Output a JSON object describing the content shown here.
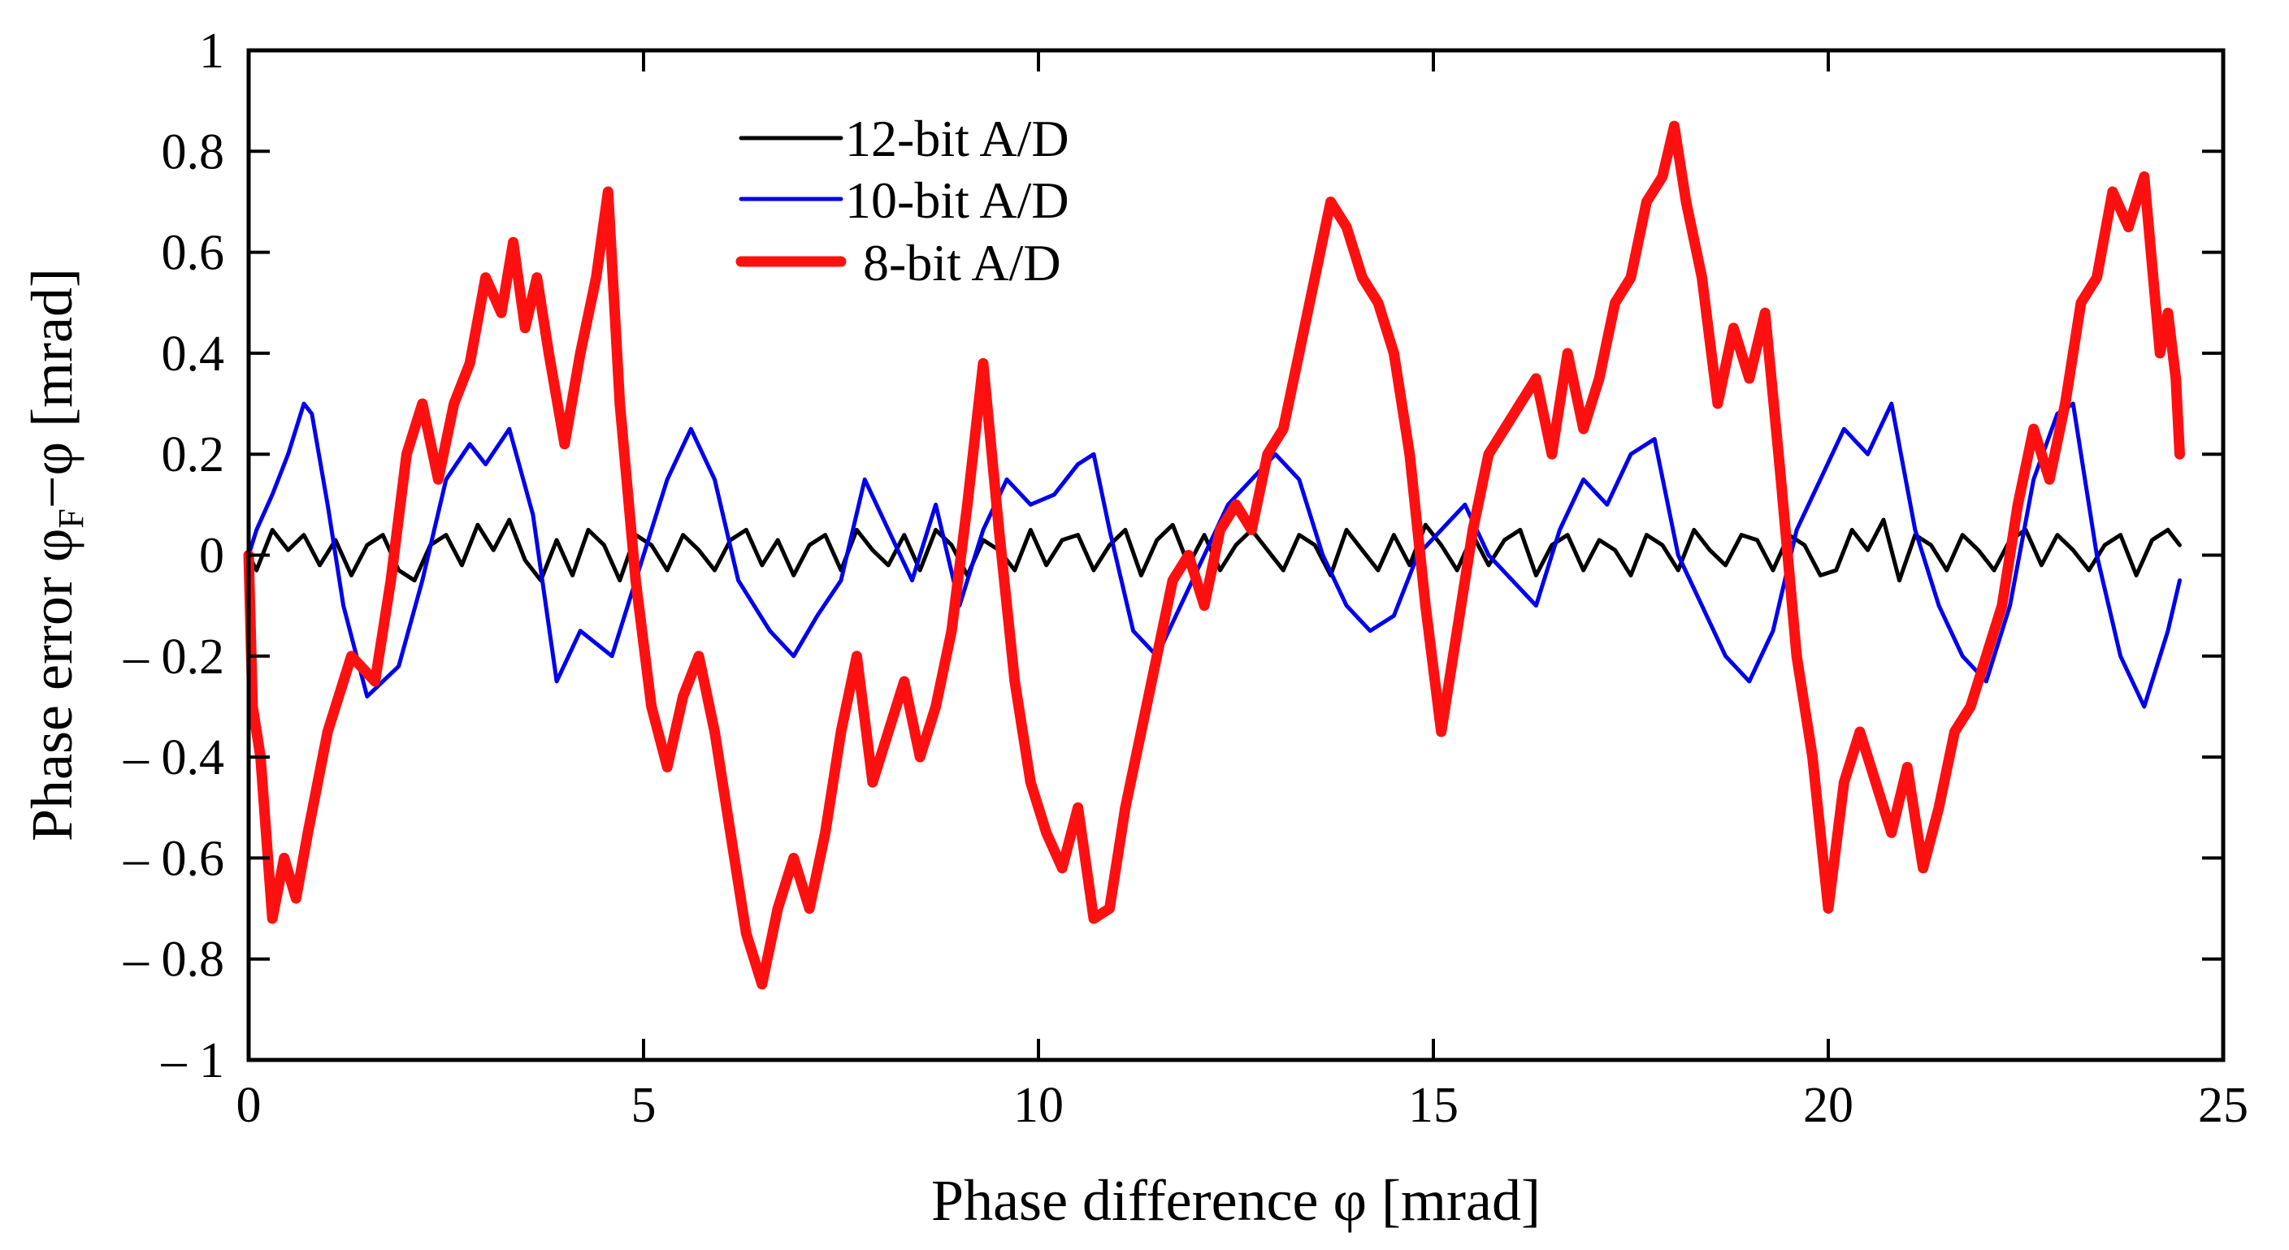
{
  "chart_data": {
    "type": "line",
    "title": "",
    "xlabel": "Phase difference φ [mrad]",
    "ylabel": "Phase error φF−φ [mrad]",
    "ylabel_parts": {
      "pre": "Phase error φ",
      "sub": "F",
      "post": "−φ [mrad]"
    },
    "xlim": [
      0,
      25
    ],
    "ylim": [
      -1,
      1
    ],
    "grid": false,
    "legend_position": "top-center",
    "x_ticks": [
      0,
      5,
      10,
      15,
      20,
      25
    ],
    "x_tick_labels": [
      "0",
      "5",
      "10",
      "15",
      "20",
      "25"
    ],
    "y_ticks": [
      -1,
      -0.8,
      -0.6,
      -0.4,
      -0.2,
      0,
      0.2,
      0.4,
      0.6,
      0.8,
      1
    ],
    "y_tick_labels": [
      "– 1",
      "– 0.8",
      "– 0.6",
      "– 0.4",
      "– 0.2",
      "0",
      "0.2",
      "0.4",
      "0.6",
      "0.8",
      "1"
    ],
    "series": [
      {
        "name": "12-bit A/D",
        "color": "#000000",
        "width": 5,
        "x": [
          0,
          0.1,
          0.3,
          0.5,
          0.7,
          0.9,
          1.1,
          1.3,
          1.5,
          1.7,
          1.9,
          2.1,
          2.3,
          2.5,
          2.7,
          2.9,
          3.1,
          3.3,
          3.5,
          3.7,
          3.9,
          4.1,
          4.3,
          4.5,
          4.7,
          4.9,
          5.1,
          5.3,
          5.5,
          5.7,
          5.9,
          6.1,
          6.3,
          6.5,
          6.7,
          6.9,
          7.1,
          7.3,
          7.5,
          7.7,
          7.9,
          8.1,
          8.3,
          8.5,
          8.7,
          8.9,
          9.1,
          9.3,
          9.5,
          9.7,
          9.9,
          10.1,
          10.3,
          10.5,
          10.7,
          10.9,
          11.1,
          11.3,
          11.5,
          11.7,
          11.9,
          12.1,
          12.3,
          12.5,
          12.7,
          12.9,
          13.1,
          13.3,
          13.5,
          13.7,
          13.9,
          14.1,
          14.3,
          14.5,
          14.7,
          14.9,
          15.1,
          15.3,
          15.5,
          15.7,
          15.9,
          16.1,
          16.3,
          16.5,
          16.7,
          16.9,
          17.1,
          17.3,
          17.5,
          17.7,
          17.9,
          18.1,
          18.3,
          18.5,
          18.7,
          18.9,
          19.1,
          19.3,
          19.5,
          19.7,
          19.9,
          20.1,
          20.3,
          20.5,
          20.7,
          20.9,
          21.1,
          21.3,
          21.5,
          21.7,
          21.9,
          22.1,
          22.3,
          22.5,
          22.7,
          22.9,
          23.1,
          23.3,
          23.5,
          23.7,
          23.9,
          24.1,
          24.3,
          24.45
        ],
        "y": [
          0,
          -0.03,
          0.05,
          0.01,
          0.04,
          -0.02,
          0.03,
          -0.04,
          0.02,
          0.04,
          -0.03,
          -0.05,
          0.02,
          0.04,
          -0.02,
          0.06,
          0.01,
          0.07,
          -0.01,
          -0.05,
          0.03,
          -0.04,
          0.05,
          0.02,
          -0.05,
          0.04,
          0.02,
          -0.03,
          0.04,
          0.01,
          -0.03,
          0.03,
          0.05,
          -0.02,
          0.03,
          -0.04,
          0.02,
          0.04,
          -0.03,
          0.05,
          0.01,
          -0.02,
          0.04,
          -0.03,
          0.05,
          0.02,
          -0.04,
          0.03,
          0.01,
          -0.03,
          0.05,
          -0.02,
          0.03,
          0.04,
          -0.03,
          0.02,
          0.05,
          -0.04,
          0.03,
          0.06,
          -0.02,
          0.04,
          -0.03,
          0.02,
          0.05,
          0.01,
          -0.03,
          0.04,
          0.02,
          -0.04,
          0.05,
          0.01,
          -0.03,
          0.04,
          -0.02,
          0.06,
          0.02,
          -0.03,
          0.04,
          -0.02,
          0.03,
          0.05,
          -0.04,
          0.02,
          0.04,
          -0.03,
          0.03,
          0.01,
          -0.04,
          0.04,
          0.02,
          -0.03,
          0.05,
          0.01,
          -0.02,
          0.04,
          0.03,
          -0.03,
          0.04,
          0.02,
          -0.04,
          -0.03,
          0.05,
          0.01,
          0.07,
          -0.05,
          0.04,
          0.02,
          -0.03,
          0.04,
          0.01,
          -0.03,
          0.03,
          0.05,
          -0.02,
          0.04,
          0.01,
          -0.03,
          0.02,
          0.04,
          -0.04,
          0.03,
          0.05,
          0.02
        ]
      },
      {
        "name": "10-bit A/D",
        "color": "#0000ee",
        "width": 5,
        "x": [
          0,
          0.1,
          0.3,
          0.5,
          0.7,
          0.8,
          1.0,
          1.2,
          1.5,
          1.9,
          2.2,
          2.5,
          2.8,
          3.0,
          3.3,
          3.6,
          3.9,
          4.2,
          4.6,
          5.0,
          5.3,
          5.6,
          5.9,
          6.2,
          6.6,
          6.9,
          7.2,
          7.5,
          7.8,
          8.1,
          8.4,
          8.7,
          9.0,
          9.3,
          9.6,
          9.9,
          10.2,
          10.5,
          10.7,
          10.9,
          11.2,
          11.5,
          11.8,
          12.1,
          12.4,
          12.7,
          13.0,
          13.3,
          13.6,
          13.9,
          14.2,
          14.5,
          14.8,
          15.1,
          15.4,
          15.7,
          16.0,
          16.3,
          16.6,
          16.9,
          17.2,
          17.5,
          17.8,
          18.1,
          18.4,
          18.7,
          19.0,
          19.3,
          19.6,
          19.9,
          20.2,
          20.5,
          20.8,
          21.1,
          21.4,
          21.7,
          22.0,
          22.3,
          22.6,
          22.9,
          23.1,
          23.4,
          23.7,
          24.0,
          24.3,
          24.45
        ],
        "y": [
          0,
          0.05,
          0.12,
          0.2,
          0.3,
          0.28,
          0.1,
          -0.1,
          -0.28,
          -0.22,
          -0.05,
          0.15,
          0.22,
          0.18,
          0.25,
          0.08,
          -0.25,
          -0.15,
          -0.2,
          0,
          0.15,
          0.25,
          0.15,
          -0.05,
          -0.15,
          -0.2,
          -0.12,
          -0.05,
          0.15,
          0.05,
          -0.05,
          0.1,
          -0.1,
          0.05,
          0.15,
          0.1,
          0.12,
          0.18,
          0.2,
          0.05,
          -0.15,
          -0.2,
          -0.1,
          0,
          0.1,
          0.15,
          0.2,
          0.15,
          0,
          -0.1,
          -0.15,
          -0.12,
          0,
          0.05,
          0.1,
          0,
          -0.05,
          -0.1,
          0.05,
          0.15,
          0.1,
          0.2,
          0.23,
          0,
          -0.1,
          -0.2,
          -0.25,
          -0.15,
          0.05,
          0.15,
          0.25,
          0.2,
          0.3,
          0.05,
          -0.1,
          -0.2,
          -0.25,
          -0.1,
          0.15,
          0.28,
          0.3,
          0,
          -0.2,
          -0.3,
          -0.15,
          -0.05
        ]
      },
      {
        "name": "8-bit A/D",
        "color": "#ff1010",
        "width": 13,
        "x": [
          0,
          0.05,
          0.15,
          0.3,
          0.45,
          0.6,
          0.75,
          1.0,
          1.3,
          1.6,
          1.8,
          2.0,
          2.2,
          2.4,
          2.6,
          2.8,
          3.0,
          3.2,
          3.35,
          3.5,
          3.65,
          3.8,
          4.0,
          4.2,
          4.4,
          4.55,
          4.7,
          4.9,
          5.1,
          5.3,
          5.5,
          5.7,
          5.9,
          6.1,
          6.3,
          6.5,
          6.7,
          6.9,
          7.1,
          7.3,
          7.5,
          7.7,
          7.9,
          8.1,
          8.3,
          8.5,
          8.7,
          8.9,
          9.1,
          9.3,
          9.5,
          9.7,
          9.9,
          10.1,
          10.3,
          10.5,
          10.7,
          10.9,
          11.1,
          11.3,
          11.5,
          11.7,
          11.9,
          12.1,
          12.3,
          12.5,
          12.7,
          12.9,
          13.1,
          13.3,
          13.5,
          13.7,
          13.9,
          14.1,
          14.3,
          14.5,
          14.7,
          14.9,
          15.1,
          15.3,
          15.5,
          15.7,
          15.9,
          16.1,
          16.3,
          16.5,
          16.7,
          16.9,
          17.1,
          17.3,
          17.5,
          17.7,
          17.9,
          18.05,
          18.2,
          18.4,
          18.6,
          18.8,
          19.0,
          19.2,
          19.4,
          19.6,
          19.8,
          20.0,
          20.2,
          20.4,
          20.6,
          20.8,
          21.0,
          21.2,
          21.4,
          21.6,
          21.8,
          22.0,
          22.2,
          22.4,
          22.6,
          22.8,
          23.0,
          23.2,
          23.4,
          23.6,
          23.8,
          24.0,
          24.2,
          24.3,
          24.4,
          24.45
        ],
        "y": [
          0,
          -0.3,
          -0.4,
          -0.72,
          -0.6,
          -0.68,
          -0.55,
          -0.35,
          -0.2,
          -0.25,
          -0.05,
          0.2,
          0.3,
          0.15,
          0.3,
          0.38,
          0.55,
          0.48,
          0.62,
          0.45,
          0.55,
          0.4,
          0.22,
          0.4,
          0.55,
          0.72,
          0.3,
          -0.05,
          -0.3,
          -0.42,
          -0.28,
          -0.2,
          -0.35,
          -0.55,
          -0.75,
          -0.85,
          -0.7,
          -0.6,
          -0.7,
          -0.55,
          -0.35,
          -0.2,
          -0.45,
          -0.35,
          -0.25,
          -0.4,
          -0.3,
          -0.15,
          0.1,
          0.38,
          0.05,
          -0.25,
          -0.45,
          -0.55,
          -0.62,
          -0.5,
          -0.72,
          -0.7,
          -0.5,
          -0.35,
          -0.2,
          -0.05,
          0,
          -0.1,
          0.05,
          0.1,
          0.05,
          0.2,
          0.25,
          0.4,
          0.55,
          0.7,
          0.65,
          0.55,
          0.5,
          0.4,
          0.2,
          -0.1,
          -0.35,
          -0.15,
          0.05,
          0.2,
          0.25,
          0.3,
          0.35,
          0.2,
          0.4,
          0.25,
          0.35,
          0.5,
          0.55,
          0.7,
          0.75,
          0.85,
          0.7,
          0.55,
          0.3,
          0.45,
          0.35,
          0.48,
          0.15,
          -0.2,
          -0.4,
          -0.7,
          -0.45,
          -0.35,
          -0.45,
          -0.55,
          -0.42,
          -0.62,
          -0.5,
          -0.35,
          -0.3,
          -0.2,
          -0.1,
          0.1,
          0.25,
          0.15,
          0.3,
          0.5,
          0.55,
          0.72,
          0.65,
          0.75,
          0.4,
          0.48,
          0.35,
          0.2
        ]
      }
    ]
  }
}
